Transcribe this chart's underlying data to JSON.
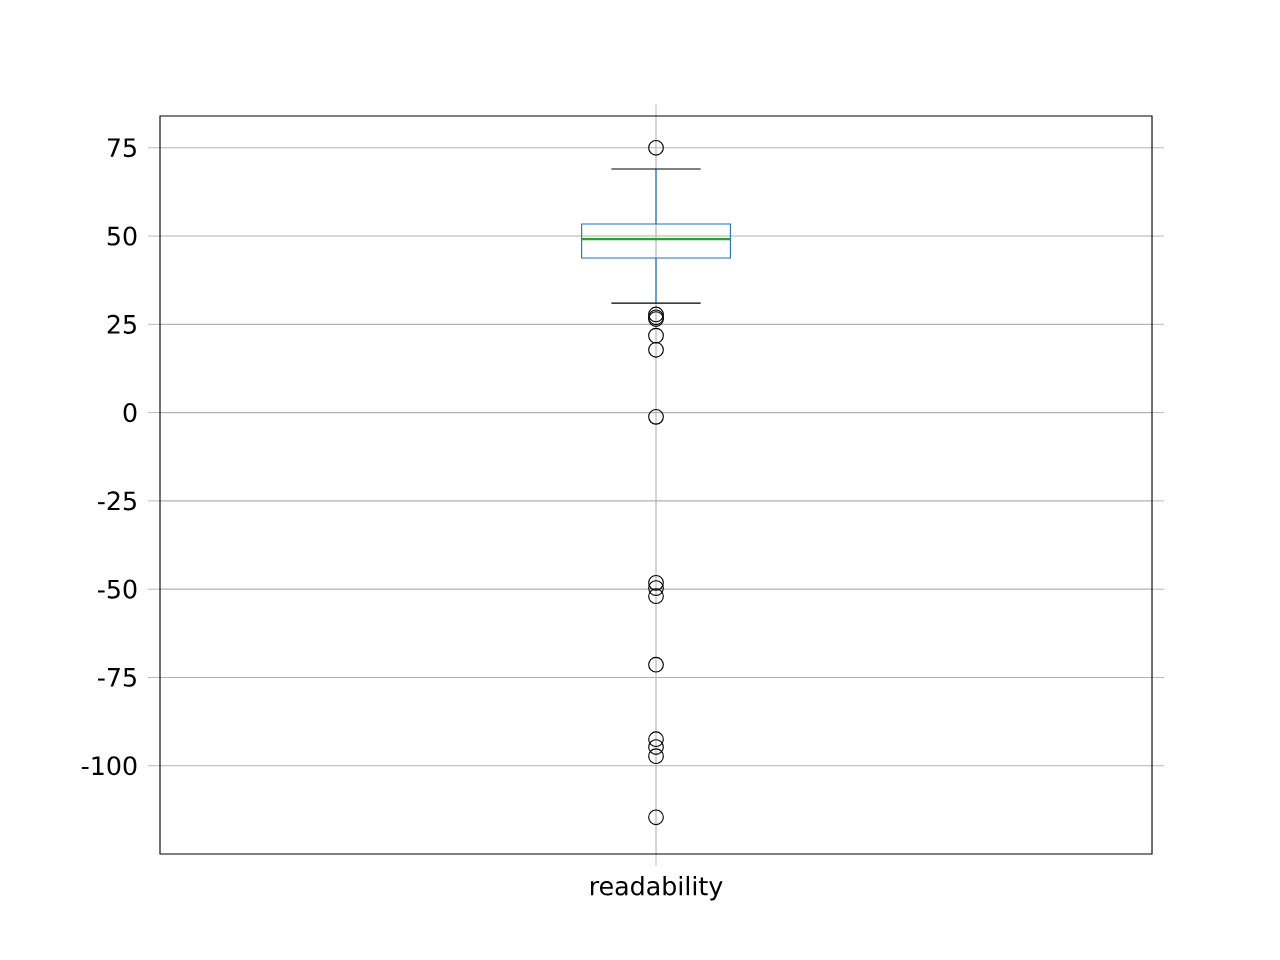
{
  "chart_data": {
    "type": "box",
    "categories": [
      "readability"
    ],
    "boxes": [
      {
        "low": 31,
        "q1": 43.8,
        "median": 49.1,
        "q3": 53.4,
        "high": 69,
        "outliers": [
          75,
          27.8,
          27,
          26.5,
          21.8,
          17.8,
          -1.2,
          -48.2,
          -49.7,
          -52,
          -71.4,
          -92.5,
          -94.7,
          -97.3,
          -114.6
        ]
      }
    ],
    "color": "#1f77b4",
    "ylim": [
      -125,
      84
    ],
    "yticks": [
      -100,
      -75,
      -50,
      -25,
      0,
      25,
      50,
      75
    ],
    "grid": true,
    "marker": "circle"
  }
}
